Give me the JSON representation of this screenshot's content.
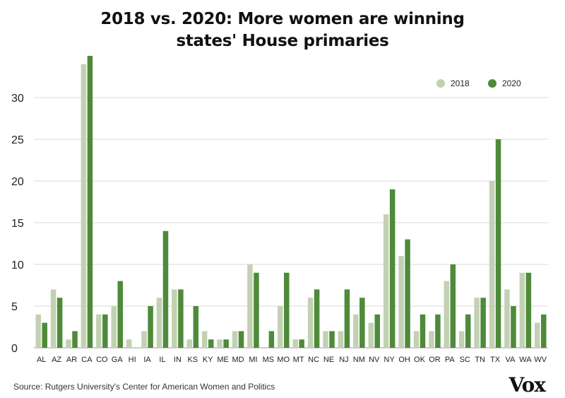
{
  "header": {
    "title_line1": "2018 vs. 2020: More women are winning",
    "title_line2": "states' House primaries"
  },
  "footer": {
    "source": "Source: Rutgers University's Center for American Women and Politics",
    "logo": "Vox"
  },
  "chart_data": {
    "type": "bar",
    "title": "2018 vs. 2020: More women are winning states' House primaries",
    "xlabel": "",
    "ylabel": "",
    "ylim": [
      0,
      35
    ],
    "yticks": [
      0,
      5,
      10,
      15,
      20,
      25,
      30
    ],
    "grid": true,
    "legend_position": "top-right",
    "categories": [
      "AL",
      "AZ",
      "AR",
      "CA",
      "CO",
      "GA",
      "HI",
      "IA",
      "IL",
      "IN",
      "KS",
      "KY",
      "ME",
      "MD",
      "MI",
      "MS",
      "MO",
      "MT",
      "NC",
      "NE",
      "NJ",
      "NM",
      "NV",
      "NY",
      "OH",
      "OK",
      "OR",
      "PA",
      "SC",
      "TN",
      "TX",
      "VA",
      "WA",
      "WV"
    ],
    "series": [
      {
        "name": "2018",
        "color": "#c3d1b3",
        "values": [
          4,
          7,
          1,
          34,
          4,
          5,
          1,
          2,
          6,
          7,
          1,
          2,
          1,
          2,
          10,
          0,
          5,
          1,
          6,
          2,
          2,
          4,
          3,
          16,
          11,
          2,
          2,
          8,
          2,
          6,
          20,
          7,
          9,
          3
        ]
      },
      {
        "name": "2020",
        "color": "#4e8a3a",
        "values": [
          3,
          6,
          2,
          35,
          4,
          8,
          0,
          5,
          14,
          7,
          5,
          1,
          1,
          2,
          9,
          2,
          9,
          1,
          7,
          2,
          7,
          6,
          4,
          19,
          13,
          4,
          4,
          10,
          4,
          6,
          25,
          5,
          9,
          4
        ]
      }
    ]
  }
}
